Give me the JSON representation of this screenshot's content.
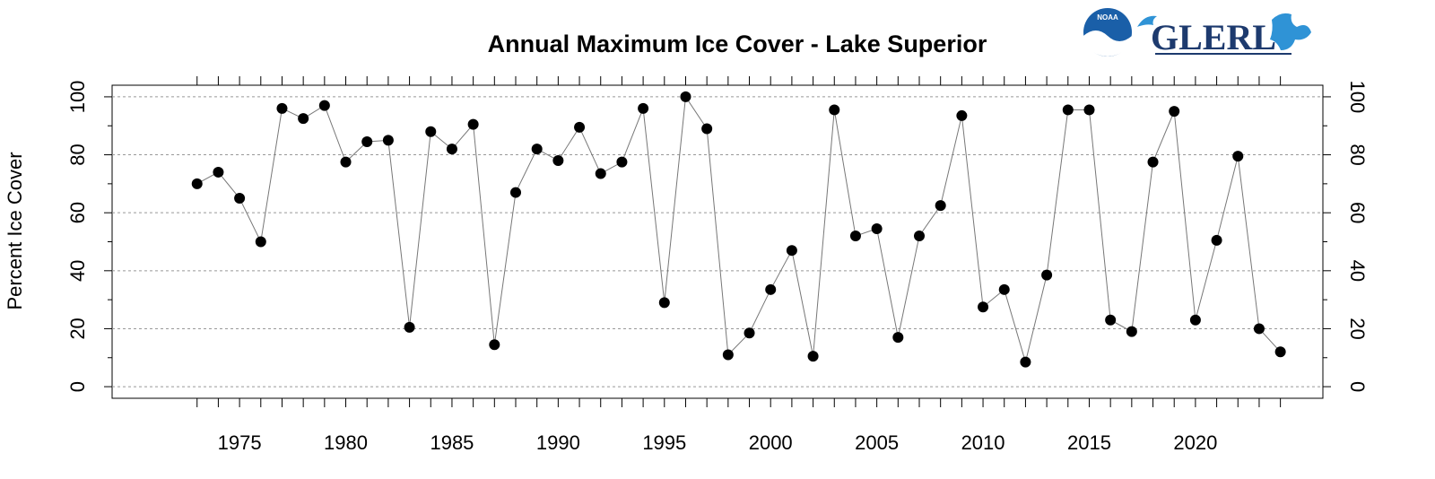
{
  "logos": {
    "noaa": "NOAA",
    "glerl": "GLERL"
  },
  "chart_data": {
    "type": "line",
    "title": "Annual Maximum Ice Cover - Lake Superior",
    "xlabel": "",
    "ylabel": "Percent Ice Cover",
    "xlim": [
      1969,
      2026
    ],
    "ylim": [
      -4,
      104
    ],
    "grid": "horizontal dashed",
    "line_color": "#777777",
    "marker_color": "#000000",
    "grid_color": "#999999",
    "y_ticks": [
      0,
      20,
      40,
      60,
      80,
      100
    ],
    "x_tick_labels": [
      1975,
      1980,
      1985,
      1990,
      1995,
      2000,
      2005,
      2010,
      2015,
      2020
    ],
    "x": [
      1973,
      1974,
      1975,
      1976,
      1977,
      1978,
      1979,
      1980,
      1981,
      1982,
      1983,
      1984,
      1985,
      1986,
      1987,
      1988,
      1989,
      1990,
      1991,
      1992,
      1993,
      1994,
      1995,
      1996,
      1997,
      1998,
      1999,
      2000,
      2001,
      2002,
      2003,
      2004,
      2005,
      2006,
      2007,
      2008,
      2009,
      2010,
      2011,
      2012,
      2013,
      2014,
      2015,
      2016,
      2017,
      2018,
      2019,
      2020,
      2021,
      2022,
      2023,
      2024
    ],
    "values": [
      70,
      74,
      65,
      50,
      96,
      92.5,
      97,
      77.5,
      84.5,
      85,
      20.5,
      88,
      82,
      90.5,
      14.5,
      67,
      82,
      78,
      89.5,
      73.5,
      77.5,
      96,
      29,
      100,
      89,
      11,
      18.5,
      33.5,
      47,
      10.5,
      95.5,
      52,
      54.5,
      17,
      52,
      62.5,
      93.5,
      27.5,
      33.5,
      8.5,
      38.5,
      95.5,
      95.5,
      23,
      19,
      77.5,
      95,
      23,
      50.5,
      79.5,
      20,
      12
    ]
  }
}
